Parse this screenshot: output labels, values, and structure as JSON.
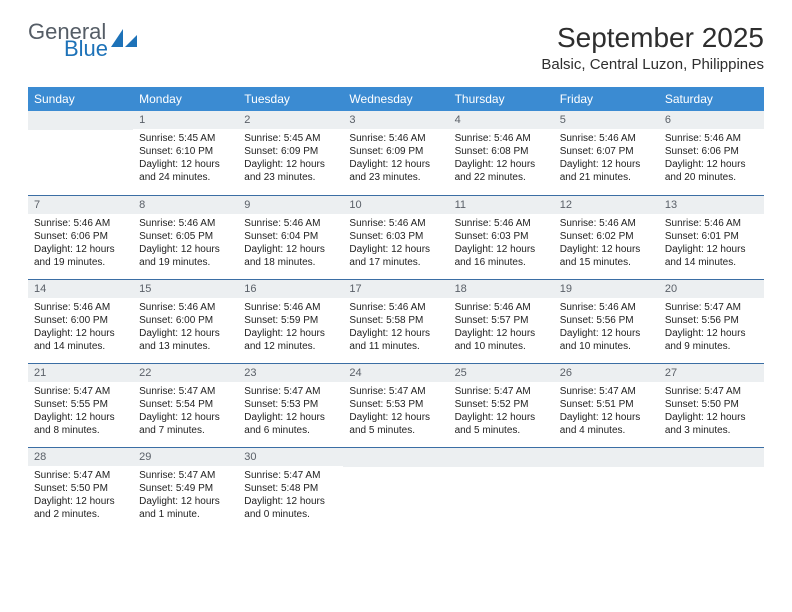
{
  "brand": {
    "general": "General",
    "blue": "Blue"
  },
  "header": {
    "month_title": "September 2025",
    "location": "Balsic, Central Luzon, Philippines"
  },
  "colors": {
    "header_bg": "#3b8bd2",
    "header_text": "#ffffff",
    "daynum_bg": "#eceff1",
    "border": "#3b6ea4",
    "logo_blue": "#1d72b8",
    "logo_gray": "#555d66"
  },
  "weekdays": [
    "Sunday",
    "Monday",
    "Tuesday",
    "Wednesday",
    "Thursday",
    "Friday",
    "Saturday"
  ],
  "weeks": [
    [
      {
        "day": "",
        "sunrise": "",
        "sunset": "",
        "daylight": ""
      },
      {
        "day": "1",
        "sunrise": "Sunrise: 5:45 AM",
        "sunset": "Sunset: 6:10 PM",
        "daylight": "Daylight: 12 hours and 24 minutes."
      },
      {
        "day": "2",
        "sunrise": "Sunrise: 5:45 AM",
        "sunset": "Sunset: 6:09 PM",
        "daylight": "Daylight: 12 hours and 23 minutes."
      },
      {
        "day": "3",
        "sunrise": "Sunrise: 5:46 AM",
        "sunset": "Sunset: 6:09 PM",
        "daylight": "Daylight: 12 hours and 23 minutes."
      },
      {
        "day": "4",
        "sunrise": "Sunrise: 5:46 AM",
        "sunset": "Sunset: 6:08 PM",
        "daylight": "Daylight: 12 hours and 22 minutes."
      },
      {
        "day": "5",
        "sunrise": "Sunrise: 5:46 AM",
        "sunset": "Sunset: 6:07 PM",
        "daylight": "Daylight: 12 hours and 21 minutes."
      },
      {
        "day": "6",
        "sunrise": "Sunrise: 5:46 AM",
        "sunset": "Sunset: 6:06 PM",
        "daylight": "Daylight: 12 hours and 20 minutes."
      }
    ],
    [
      {
        "day": "7",
        "sunrise": "Sunrise: 5:46 AM",
        "sunset": "Sunset: 6:06 PM",
        "daylight": "Daylight: 12 hours and 19 minutes."
      },
      {
        "day": "8",
        "sunrise": "Sunrise: 5:46 AM",
        "sunset": "Sunset: 6:05 PM",
        "daylight": "Daylight: 12 hours and 19 minutes."
      },
      {
        "day": "9",
        "sunrise": "Sunrise: 5:46 AM",
        "sunset": "Sunset: 6:04 PM",
        "daylight": "Daylight: 12 hours and 18 minutes."
      },
      {
        "day": "10",
        "sunrise": "Sunrise: 5:46 AM",
        "sunset": "Sunset: 6:03 PM",
        "daylight": "Daylight: 12 hours and 17 minutes."
      },
      {
        "day": "11",
        "sunrise": "Sunrise: 5:46 AM",
        "sunset": "Sunset: 6:03 PM",
        "daylight": "Daylight: 12 hours and 16 minutes."
      },
      {
        "day": "12",
        "sunrise": "Sunrise: 5:46 AM",
        "sunset": "Sunset: 6:02 PM",
        "daylight": "Daylight: 12 hours and 15 minutes."
      },
      {
        "day": "13",
        "sunrise": "Sunrise: 5:46 AM",
        "sunset": "Sunset: 6:01 PM",
        "daylight": "Daylight: 12 hours and 14 minutes."
      }
    ],
    [
      {
        "day": "14",
        "sunrise": "Sunrise: 5:46 AM",
        "sunset": "Sunset: 6:00 PM",
        "daylight": "Daylight: 12 hours and 14 minutes."
      },
      {
        "day": "15",
        "sunrise": "Sunrise: 5:46 AM",
        "sunset": "Sunset: 6:00 PM",
        "daylight": "Daylight: 12 hours and 13 minutes."
      },
      {
        "day": "16",
        "sunrise": "Sunrise: 5:46 AM",
        "sunset": "Sunset: 5:59 PM",
        "daylight": "Daylight: 12 hours and 12 minutes."
      },
      {
        "day": "17",
        "sunrise": "Sunrise: 5:46 AM",
        "sunset": "Sunset: 5:58 PM",
        "daylight": "Daylight: 12 hours and 11 minutes."
      },
      {
        "day": "18",
        "sunrise": "Sunrise: 5:46 AM",
        "sunset": "Sunset: 5:57 PM",
        "daylight": "Daylight: 12 hours and 10 minutes."
      },
      {
        "day": "19",
        "sunrise": "Sunrise: 5:46 AM",
        "sunset": "Sunset: 5:56 PM",
        "daylight": "Daylight: 12 hours and 10 minutes."
      },
      {
        "day": "20",
        "sunrise": "Sunrise: 5:47 AM",
        "sunset": "Sunset: 5:56 PM",
        "daylight": "Daylight: 12 hours and 9 minutes."
      }
    ],
    [
      {
        "day": "21",
        "sunrise": "Sunrise: 5:47 AM",
        "sunset": "Sunset: 5:55 PM",
        "daylight": "Daylight: 12 hours and 8 minutes."
      },
      {
        "day": "22",
        "sunrise": "Sunrise: 5:47 AM",
        "sunset": "Sunset: 5:54 PM",
        "daylight": "Daylight: 12 hours and 7 minutes."
      },
      {
        "day": "23",
        "sunrise": "Sunrise: 5:47 AM",
        "sunset": "Sunset: 5:53 PM",
        "daylight": "Daylight: 12 hours and 6 minutes."
      },
      {
        "day": "24",
        "sunrise": "Sunrise: 5:47 AM",
        "sunset": "Sunset: 5:53 PM",
        "daylight": "Daylight: 12 hours and 5 minutes."
      },
      {
        "day": "25",
        "sunrise": "Sunrise: 5:47 AM",
        "sunset": "Sunset: 5:52 PM",
        "daylight": "Daylight: 12 hours and 5 minutes."
      },
      {
        "day": "26",
        "sunrise": "Sunrise: 5:47 AM",
        "sunset": "Sunset: 5:51 PM",
        "daylight": "Daylight: 12 hours and 4 minutes."
      },
      {
        "day": "27",
        "sunrise": "Sunrise: 5:47 AM",
        "sunset": "Sunset: 5:50 PM",
        "daylight": "Daylight: 12 hours and 3 minutes."
      }
    ],
    [
      {
        "day": "28",
        "sunrise": "Sunrise: 5:47 AM",
        "sunset": "Sunset: 5:50 PM",
        "daylight": "Daylight: 12 hours and 2 minutes."
      },
      {
        "day": "29",
        "sunrise": "Sunrise: 5:47 AM",
        "sunset": "Sunset: 5:49 PM",
        "daylight": "Daylight: 12 hours and 1 minute."
      },
      {
        "day": "30",
        "sunrise": "Sunrise: 5:47 AM",
        "sunset": "Sunset: 5:48 PM",
        "daylight": "Daylight: 12 hours and 0 minutes."
      },
      {
        "day": "",
        "sunrise": "",
        "sunset": "",
        "daylight": ""
      },
      {
        "day": "",
        "sunrise": "",
        "sunset": "",
        "daylight": ""
      },
      {
        "day": "",
        "sunrise": "",
        "sunset": "",
        "daylight": ""
      },
      {
        "day": "",
        "sunrise": "",
        "sunset": "",
        "daylight": ""
      }
    ]
  ]
}
